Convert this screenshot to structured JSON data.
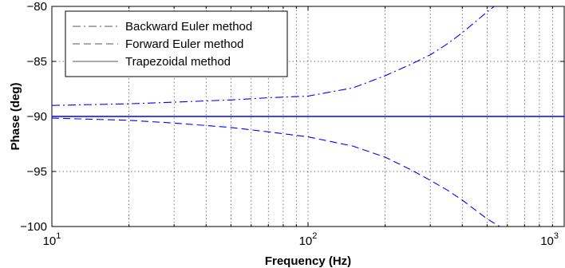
{
  "chart_data": {
    "type": "line",
    "xlabel": "Frequency  (Hz)",
    "ylabel": "Phase (deg)",
    "xscale": "log",
    "xlim": [
      10,
      1000
    ],
    "ylim": [
      -100,
      -80
    ],
    "x_ticks": [
      10,
      100,
      1000
    ],
    "x_tick_labels": [
      {
        "base": "10",
        "exp": "1"
      },
      {
        "base": "10",
        "exp": "2"
      },
      {
        "base": "10",
        "exp": "3"
      }
    ],
    "y_ticks": [
      -100,
      -95,
      -90,
      -85,
      -80
    ],
    "y_tick_labels": [
      "−100",
      "−95",
      "−90",
      "−85",
      "−80"
    ],
    "grid": true,
    "legend_position": "top-left",
    "series": [
      {
        "name": "Backward Euler method",
        "line_style": "dash-dot",
        "color": "#0000ff",
        "x": [
          10,
          20,
          30,
          50,
          70,
          100,
          150,
          200,
          250,
          300,
          350,
          400,
          450,
          500,
          540
        ],
        "y": [
          -89.0,
          -88.85,
          -88.7,
          -88.5,
          -88.3,
          -88.15,
          -87.4,
          -86.3,
          -85.3,
          -84.4,
          -83.4,
          -82.4,
          -81.4,
          -80.5,
          -79.9
        ]
      },
      {
        "name": "Forward Euler method",
        "line_style": "dashed",
        "color": "#0000ff",
        "x": [
          10,
          20,
          30,
          50,
          70,
          100,
          150,
          200,
          250,
          300,
          350,
          400,
          450,
          500,
          560
        ],
        "y": [
          -90.15,
          -90.35,
          -90.6,
          -91.0,
          -91.4,
          -91.85,
          -92.7,
          -93.7,
          -94.8,
          -95.8,
          -96.7,
          -97.6,
          -98.5,
          -99.3,
          -100.0
        ]
      },
      {
        "name": "Trapezoidal method",
        "line_style": "solid",
        "color": "#0000ff",
        "x": [
          10,
          1000
        ],
        "y": [
          -90.0,
          -90.0
        ]
      }
    ]
  }
}
